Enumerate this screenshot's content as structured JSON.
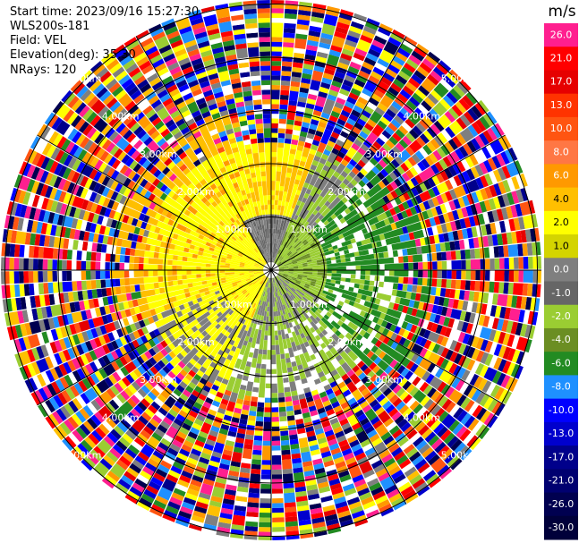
{
  "header": {
    "start_time": "Start time: 2023/09/16 15:27:30",
    "instrument": "WLS200s-181",
    "field": "Field: VEL",
    "elevation": "Elevation(deg): 35.30",
    "nrays": "NRays: 120"
  },
  "chart_data": {
    "type": "heatmap",
    "projection": "polar-ppi",
    "field": "VEL",
    "nrays": 120,
    "range_rings_km": [
      "1.00km",
      "2.00km",
      "3.00km",
      "4.00km",
      "5.00km"
    ],
    "colorbar": {
      "unit": "m/s",
      "ticks": [
        "26.0",
        "21.0",
        "17.0",
        "13.0",
        "10.0",
        "8.0",
        "6.0",
        "4.0",
        "2.0",
        "1.0",
        "0.0",
        "-1.0",
        "-2.0",
        "-4.0",
        "-6.0",
        "-8.0",
        "-10.0",
        "-13.0",
        "-17.0",
        "-21.0",
        "-26.0",
        "-30.0"
      ],
      "colors": [
        "#ff1f8f",
        "#ff0000",
        "#e60000",
        "#ff3300",
        "#ff5511",
        "#ff7744",
        "#ff9900",
        "#ffbf00",
        "#ffff00",
        "#d4d400",
        "#7f7f7f",
        "#666666",
        "#9acd32",
        "#6b8e23",
        "#228b22",
        "#1e90ff",
        "#0000ff",
        "#0000cd",
        "#00008b",
        "#000070",
        "#000050",
        "#00003a"
      ]
    }
  }
}
